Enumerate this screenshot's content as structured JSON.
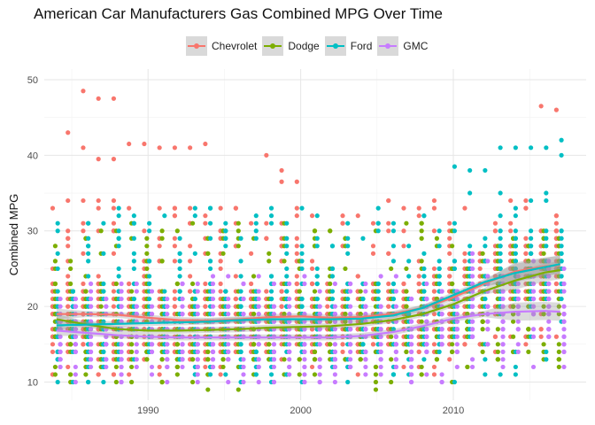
{
  "chart_data": {
    "type": "scatter",
    "title": "American Car Manufacturers Gas Combined MPG Over Time",
    "xlabel": "",
    "ylabel": "Combined MPG",
    "xlim": [
      1983.2,
      2018.7
    ],
    "ylim": [
      7.6,
      51.4
    ],
    "x_ticks": [
      1990,
      2000,
      2010
    ],
    "y_ticks": [
      10,
      20,
      30,
      40,
      50
    ],
    "grid": true,
    "legend_position": "top",
    "smoothing": "loess with confidence band",
    "series": [
      {
        "name": "Chevrolet",
        "color": "#F8766D",
        "trend": [
          [
            1984,
            19.0
          ],
          [
            1986,
            19.0
          ],
          [
            1988,
            18.9
          ],
          [
            1990,
            18.5
          ],
          [
            1992,
            18.2
          ],
          [
            1994,
            18.1
          ],
          [
            1996,
            18.3
          ],
          [
            1998,
            18.6
          ],
          [
            2000,
            18.7
          ],
          [
            2002,
            18.5
          ],
          [
            2004,
            18.6
          ],
          [
            2006,
            19.0
          ],
          [
            2008,
            19.8
          ],
          [
            2010,
            21.2
          ],
          [
            2012,
            23.0
          ],
          [
            2014,
            24.6
          ],
          [
            2016,
            25.3
          ],
          [
            2017,
            25.5
          ]
        ],
        "upper_outliers": [
          [
            1985,
            43
          ],
          [
            1986,
            48.5
          ],
          [
            1986,
            41
          ],
          [
            1987,
            47.5
          ],
          [
            1987,
            39.5
          ],
          [
            1988,
            47.5
          ],
          [
            1988,
            39.5
          ],
          [
            1989,
            41.5
          ],
          [
            1990,
            41.5
          ],
          [
            1991,
            41
          ],
          [
            1992,
            41
          ],
          [
            1993,
            41
          ],
          [
            1994,
            41.5
          ],
          [
            1998,
            40
          ],
          [
            1999,
            38
          ],
          [
            1999,
            36.5
          ],
          [
            2000,
            36.5
          ],
          [
            2016,
            46.5
          ],
          [
            2017,
            46
          ]
        ]
      },
      {
        "name": "Dodge",
        "color": "#7CAE00",
        "trend": [
          [
            1984,
            18.3
          ],
          [
            1986,
            17.6
          ],
          [
            1988,
            17.0
          ],
          [
            1990,
            16.8
          ],
          [
            1992,
            16.8
          ],
          [
            1994,
            16.9
          ],
          [
            1996,
            17.0
          ],
          [
            1998,
            17.2
          ],
          [
            2000,
            17.3
          ],
          [
            2002,
            17.4
          ],
          [
            2004,
            17.7
          ],
          [
            2006,
            18.2
          ],
          [
            2008,
            19.0
          ],
          [
            2010,
            20.3
          ],
          [
            2012,
            22.0
          ],
          [
            2014,
            23.4
          ],
          [
            2016,
            24.5
          ],
          [
            2017,
            24.8
          ]
        ],
        "upper_outliers": []
      },
      {
        "name": "Ford",
        "color": "#00BFC4",
        "trend": [
          [
            1984,
            17.5
          ],
          [
            1986,
            17.6
          ],
          [
            1988,
            17.7
          ],
          [
            1990,
            17.8
          ],
          [
            1992,
            17.9
          ],
          [
            1994,
            18.0
          ],
          [
            1996,
            18.2
          ],
          [
            1998,
            18.3
          ],
          [
            2000,
            18.3
          ],
          [
            2002,
            18.3
          ],
          [
            2004,
            18.4
          ],
          [
            2006,
            18.8
          ],
          [
            2008,
            19.8
          ],
          [
            2010,
            21.5
          ],
          [
            2012,
            23.2
          ],
          [
            2014,
            24.4
          ],
          [
            2016,
            25.2
          ],
          [
            2017,
            25.6
          ]
        ],
        "upper_outliers": [
          [
            2010,
            38.5
          ],
          [
            2011,
            38
          ],
          [
            2012,
            38
          ],
          [
            2013,
            41
          ],
          [
            2014,
            41
          ],
          [
            2015,
            41
          ],
          [
            2016,
            41
          ],
          [
            2017,
            42
          ],
          [
            2017,
            40
          ]
        ]
      },
      {
        "name": "GMC",
        "color": "#C77CFF",
        "trend": [
          [
            1984,
            16.8
          ],
          [
            1986,
            16.5
          ],
          [
            1988,
            16.2
          ],
          [
            1990,
            16.0
          ],
          [
            1992,
            15.9
          ],
          [
            1994,
            15.9
          ],
          [
            1996,
            15.9
          ],
          [
            1998,
            15.9
          ],
          [
            2000,
            15.9
          ],
          [
            2002,
            15.9
          ],
          [
            2004,
            16.1
          ],
          [
            2006,
            16.6
          ],
          [
            2008,
            17.4
          ],
          [
            2010,
            18.4
          ],
          [
            2012,
            19.0
          ],
          [
            2014,
            19.3
          ],
          [
            2016,
            19.4
          ],
          [
            2017,
            19.3
          ]
        ],
        "upper_outliers": []
      }
    ]
  }
}
